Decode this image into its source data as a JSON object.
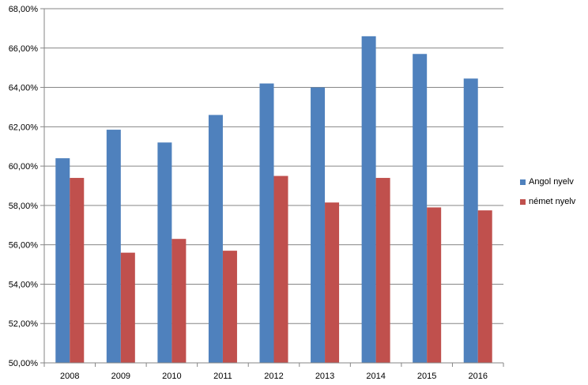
{
  "chart_data": {
    "type": "bar",
    "categories": [
      "2008",
      "2009",
      "2010",
      "2011",
      "2012",
      "2013",
      "2014",
      "2015",
      "2016"
    ],
    "series": [
      {
        "name": "Angol nyelv",
        "color": "#4F81BD",
        "values": [
          60.4,
          61.85,
          61.2,
          62.6,
          64.2,
          64.0,
          66.6,
          65.7,
          64.45
        ]
      },
      {
        "name": "német nyelv",
        "color": "#C0504D",
        "values": [
          59.4,
          55.6,
          56.3,
          55.7,
          59.5,
          58.15,
          59.4,
          57.9,
          57.75
        ]
      }
    ],
    "ylim": [
      50,
      68
    ],
    "yticks": [
      "50,00%",
      "52,00%",
      "54,00%",
      "56,00%",
      "58,00%",
      "60,00%",
      "62,00%",
      "64,00%",
      "66,00%",
      "68,00%"
    ],
    "grid": true,
    "legend_position": "right"
  }
}
